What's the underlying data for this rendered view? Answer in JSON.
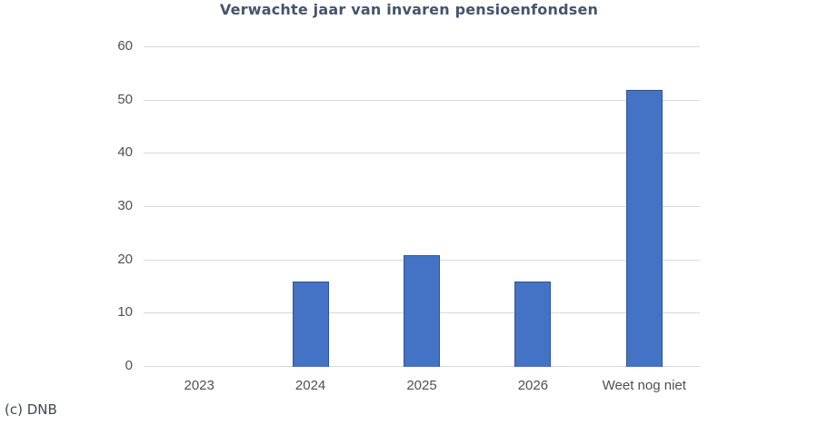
{
  "credit": "(c) DNB",
  "chart_data": {
    "type": "bar",
    "title": "Verwachte jaar van invaren pensioenfondsen",
    "categories": [
      "2023",
      "2024",
      "2025",
      "2026",
      "Weet nog niet"
    ],
    "values": [
      0,
      16,
      21,
      16,
      52
    ],
    "xlabel": "",
    "ylabel": "",
    "ylim": [
      0,
      60
    ],
    "ytick_step": 10,
    "yticks": [
      0,
      10,
      20,
      30,
      40,
      50,
      60
    ],
    "grid": true,
    "legend": "none",
    "colors": {
      "bar_fill": "#4472C4",
      "bar_border": "#2F5597",
      "gridline": "#D9D9D9",
      "axis_labels": "#4f4f4f",
      "title": "#44546A"
    }
  }
}
